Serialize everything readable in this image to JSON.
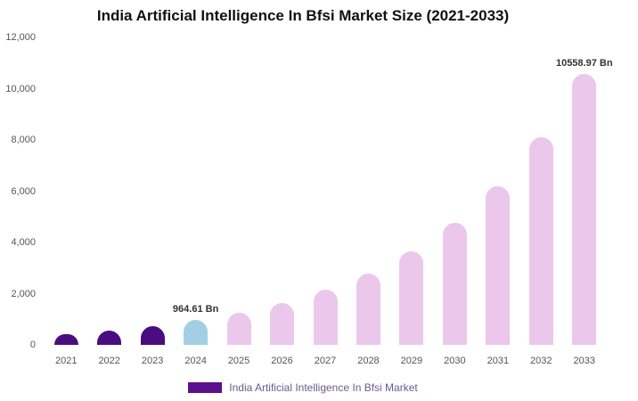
{
  "legend": {
    "label": "India Artificial Intelligence In Bfsi Market",
    "swatch_color": "#5b108d"
  },
  "chart_data": {
    "type": "bar",
    "title": "India Artificial Intelligence In Bfsi Market Size (2021-2033)",
    "categories": [
      "2021",
      "2022",
      "2023",
      "2024",
      "2025",
      "2026",
      "2027",
      "2028",
      "2029",
      "2030",
      "2031",
      "2032",
      "2033"
    ],
    "values": [
      430,
      560,
      730,
      964.61,
      1260,
      1640,
      2140,
      2790,
      3640,
      4750,
      6200,
      8090,
      10558.97
    ],
    "colors": [
      "#4a0d7f",
      "#4a0d7f",
      "#4a0d7f",
      "#a3cfe5",
      "#ecc7ec",
      "#ecc7ec",
      "#ecc7ec",
      "#ecc7ec",
      "#ecc7ec",
      "#ecc7ec",
      "#ecc7ec",
      "#ecc7ec",
      "#ecc7ec"
    ],
    "ylim": [
      0,
      12000
    ],
    "yticks": [
      "12,000",
      "10,000",
      "8,000",
      "6,000",
      "4,000",
      "2,000",
      "0"
    ],
    "grid": "off",
    "legend_position": "bottom",
    "annotations": [
      {
        "category": "2024",
        "text": "964.61 Bn"
      },
      {
        "category": "2033",
        "text": "10558.97 Bn"
      }
    ]
  }
}
